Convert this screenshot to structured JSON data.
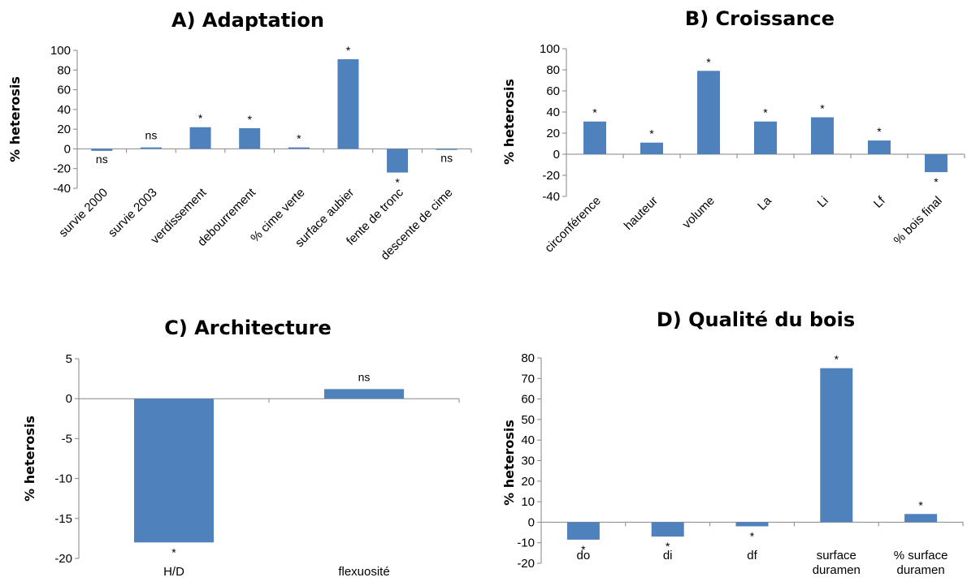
{
  "bar_color": "#4f81bd",
  "chart_data": [
    {
      "type": "bar",
      "title": "A) Adaptation",
      "ylabel": "% heterosis",
      "ylim": [
        -40,
        100
      ],
      "yticks": [
        -40,
        -20,
        0,
        20,
        40,
        60,
        80,
        100
      ],
      "categories": [
        "survie 2000",
        "survie 2003",
        "verdissement",
        "debourrement",
        "% cime verte",
        "surface aubier",
        "fente de tronc",
        "descente de cime"
      ],
      "values": [
        -2,
        1.5,
        22,
        21,
        1.5,
        91,
        -24,
        -1
      ],
      "annotations": [
        "ns",
        "ns",
        "*",
        "*",
        "*",
        "*",
        "*",
        "ns"
      ],
      "grid": false
    },
    {
      "type": "bar",
      "title": "B) Croissance",
      "ylabel": "% heterosis",
      "ylim": [
        -40,
        100
      ],
      "yticks": [
        -40,
        -20,
        0,
        20,
        40,
        60,
        80,
        100
      ],
      "categories": [
        "circonférence",
        "hauteur",
        "volume",
        "La",
        "Li",
        "Lf",
        "% bois final"
      ],
      "values": [
        31,
        11,
        79,
        31,
        35,
        13,
        -17
      ],
      "annotations": [
        "*",
        "*",
        "*",
        "*",
        "*",
        "*",
        "*"
      ],
      "grid": false
    },
    {
      "type": "bar",
      "title": "C) Architecture",
      "ylabel": "% heterosis",
      "ylim": [
        -20,
        5
      ],
      "yticks": [
        -20,
        -15,
        -10,
        -5,
        0,
        5
      ],
      "categories": [
        "H/D",
        "flexuosité"
      ],
      "values": [
        -18,
        1.2
      ],
      "annotations": [
        "*",
        "ns"
      ],
      "grid": false
    },
    {
      "type": "bar",
      "title": "D) Qualité du bois",
      "ylabel": "% heterosis",
      "ylim": [
        -20,
        80
      ],
      "yticks": [
        -20,
        -10,
        0,
        10,
        20,
        30,
        40,
        50,
        60,
        70,
        80
      ],
      "categories": [
        "do",
        "di",
        "df",
        "surface\nduramen",
        "% surface\nduramen"
      ],
      "values": [
        -8.5,
        -7,
        -2,
        75,
        4
      ],
      "annotations": [
        "*",
        "*",
        "*",
        "*",
        "*"
      ],
      "grid": false
    }
  ]
}
